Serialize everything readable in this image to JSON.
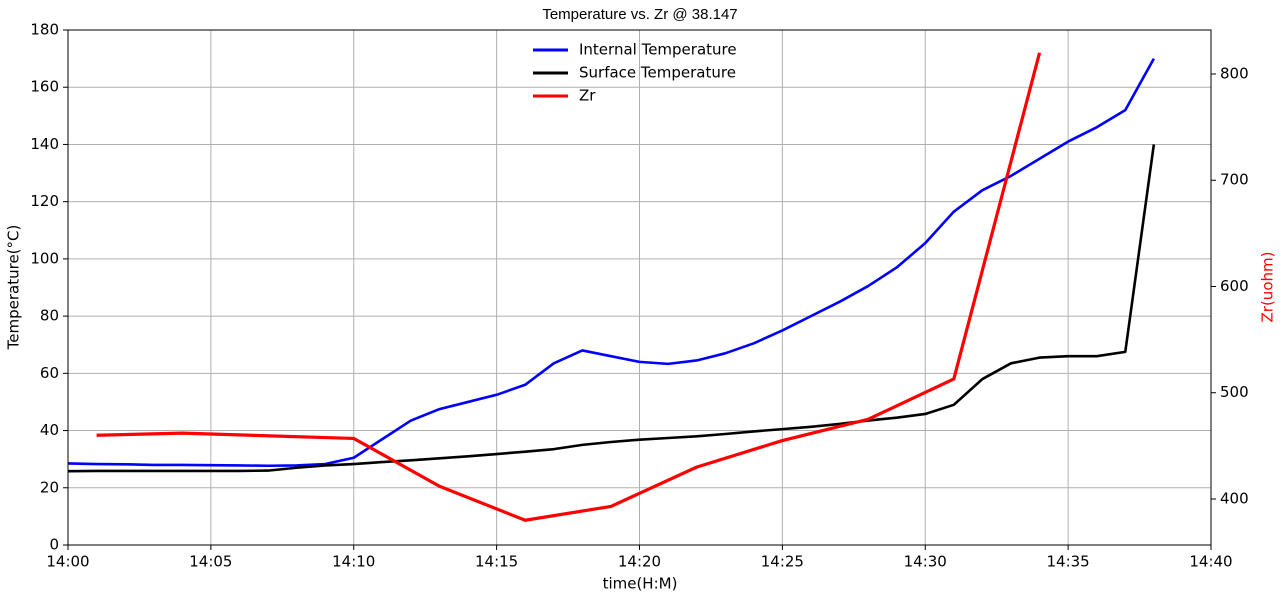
{
  "chart_data": {
    "type": "line",
    "title": "Temperature vs. Zr @ 38.147",
    "xlabel": "time(H:M)",
    "ylabel": "Temperature(°C)",
    "y2label": "Zr(uohm)",
    "y2label_color": "#ff0000",
    "xlim": [
      "14:00",
      "14:40"
    ],
    "xticks": [
      "14:00",
      "14:05",
      "14:10",
      "14:15",
      "14:20",
      "14:25",
      "14:30",
      "14:35",
      "14:40"
    ],
    "ylim": [
      0,
      180
    ],
    "yticks": [
      0,
      20,
      40,
      60,
      80,
      100,
      120,
      140,
      160,
      180
    ],
    "y2lim": [
      356.7,
      841.4
    ],
    "y2ticks": [
      400,
      500,
      600,
      700,
      800
    ],
    "grid": true,
    "legend": "upper center",
    "series": [
      {
        "name": "Internal Temperature",
        "color": "#0000ff",
        "x": [
          "14:00",
          "14:01",
          "14:02",
          "14:03",
          "14:04",
          "14:05",
          "14:06",
          "14:07",
          "14:08",
          "14:09",
          "14:10",
          "14:11",
          "14:12",
          "14:13",
          "14:14",
          "14:15",
          "14:16",
          "14:17",
          "14:18",
          "14:19",
          "14:20",
          "14:21",
          "14:22",
          "14:23",
          "14:24",
          "14:25",
          "14:26",
          "14:27",
          "14:28",
          "14:29",
          "14:30",
          "14:31",
          "14:32",
          "14:33",
          "14:34",
          "14:35",
          "14:36",
          "14:37",
          "14:38"
        ],
        "values": [
          28.5,
          28.3,
          28.2,
          28,
          28,
          27.9,
          27.8,
          27.7,
          27.8,
          28.3,
          30.5,
          37,
          43.5,
          47.5,
          50,
          52.5,
          56,
          63.5,
          68,
          66,
          64,
          63.3,
          64.5,
          67,
          70.5,
          75,
          80,
          85,
          90.5,
          97,
          105.5,
          116.5,
          124,
          129,
          135,
          141,
          146,
          152,
          170
        ]
      },
      {
        "name": "Surface Temperature",
        "color": "#000000",
        "x": [
          "14:00",
          "14:01",
          "14:02",
          "14:03",
          "14:04",
          "14:05",
          "14:06",
          "14:07",
          "14:08",
          "14:09",
          "14:10",
          "14:11",
          "14:12",
          "14:13",
          "14:14",
          "14:15",
          "14:16",
          "14:17",
          "14:18",
          "14:19",
          "14:20",
          "14:21",
          "14:22",
          "14:23",
          "14:24",
          "14:25",
          "14:26",
          "14:27",
          "14:28",
          "14:29",
          "14:30",
          "14:31",
          "14:32",
          "14:33",
          "14:34",
          "14:35",
          "14:36",
          "14:37",
          "14:38"
        ],
        "values": [
          25.8,
          25.9,
          25.9,
          25.9,
          25.9,
          25.9,
          25.9,
          26,
          27,
          27.8,
          28.3,
          29,
          29.6,
          30.3,
          31,
          31.8,
          32.6,
          33.5,
          35,
          36,
          36.8,
          37.4,
          38,
          38.8,
          39.7,
          40.5,
          41.3,
          42.3,
          43.5,
          44.5,
          45.8,
          49,
          58,
          63.5,
          65.5,
          66,
          66,
          67.5,
          140
        ]
      },
      {
        "name": "Zr",
        "color": "#ff0000",
        "axis": "y2",
        "x": [
          "14:01",
          "14:04",
          "14:10",
          "14:13",
          "14:16",
          "14:19",
          "14:22",
          "14:25",
          "14:28",
          "14:31",
          "14:34"
        ],
        "values": [
          460,
          462,
          457,
          412,
          380,
          393,
          430,
          455,
          475,
          513,
          820
        ]
      }
    ]
  }
}
